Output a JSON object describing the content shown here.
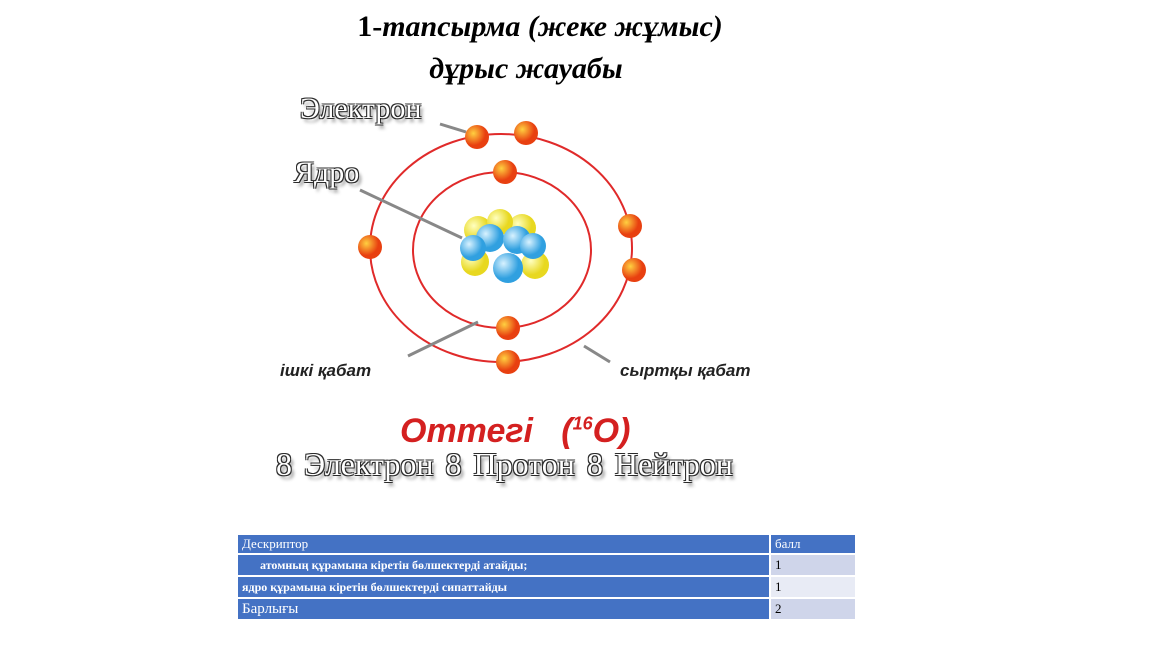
{
  "title": {
    "prefix": "1-",
    "main": "тапсырма (жеке жұмыс)",
    "subtitle": "дұрыс жауабы"
  },
  "diagram": {
    "labels": {
      "electron": "Электрон",
      "nucleus": "Ядро",
      "inner_layer": "ішкі қабат",
      "outer_layer": "сыртқы қабат"
    },
    "element": {
      "name": "Оттегі",
      "mass_number": "16",
      "symbol": "O"
    },
    "counts": "8 Электрон   8 Протон   8 Нейтрон",
    "colors": {
      "orbit": "#e02a2a",
      "electron": "#f06010",
      "proton": "#4ab0e8",
      "neutron": "#f0e040"
    }
  },
  "table": {
    "headers": [
      "Дескриптор",
      "балл"
    ],
    "rows": [
      [
        "атомның құрамына кіретін бөлшектерді атайды;",
        "1"
      ],
      [
        "ядро құрамына кіретін бөлшектерді сипаттайды",
        "1"
      ],
      [
        "Барлығы",
        "2"
      ]
    ]
  }
}
